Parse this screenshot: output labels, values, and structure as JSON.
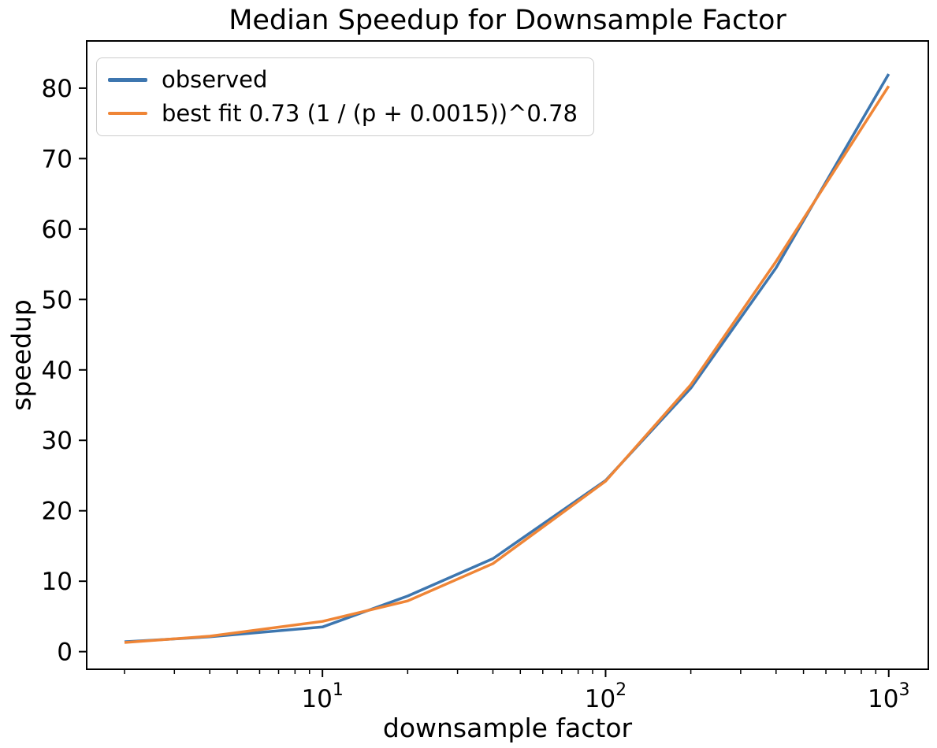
{
  "chart_data": {
    "type": "line",
    "title": "Median Speedup for Downsample Factor",
    "xlabel": "downsample factor",
    "ylabel": "speedup",
    "x_scale": "log",
    "y_scale": "linear",
    "grid": false,
    "legend_position": "upper left",
    "x": [
      2,
      4,
      10,
      20,
      40,
      100,
      200,
      400,
      1000
    ],
    "series": [
      {
        "name": "observed",
        "color": "#3d76af",
        "values": [
          1.4,
          2.1,
          3.5,
          7.9,
          13.2,
          24.3,
          37.4,
          54.5,
          82.0
        ]
      },
      {
        "name": "best fit 0.73 (1 / (p + 0.0015))^0.78",
        "color": "#ef8536",
        "values": [
          1.3,
          2.2,
          4.3,
          7.2,
          12.5,
          24.2,
          37.9,
          55.4,
          80.3
        ]
      }
    ],
    "xlim": [
      1.47,
      1380
    ],
    "ylim": [
      -2.5,
      86.7
    ],
    "y_ticks": [
      0,
      10,
      20,
      30,
      40,
      50,
      60,
      70,
      80
    ],
    "x_major_ticks": [
      10,
      100,
      1000
    ],
    "x_minor_tick_subs": [
      2,
      3,
      4,
      5,
      6,
      7,
      8,
      9
    ]
  }
}
